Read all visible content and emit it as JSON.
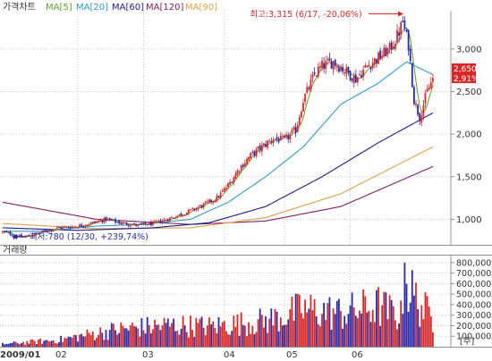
{
  "chart_data": [
    {
      "type": "candlestick",
      "title": "가격차트",
      "legend": [
        {
          "label": "MA[5]",
          "color": "#5aa02c"
        },
        {
          "label": "MA[20]",
          "color": "#3399cc"
        },
        {
          "label": "MA[60]",
          "color": "#1a1a8c"
        },
        {
          "label": "MA[120]",
          "color": "#802060"
        },
        {
          "label": "MA[90]",
          "color": "#d9a24a"
        }
      ],
      "x_ticks": [
        "2009/01",
        "02",
        "03",
        "04",
        "05",
        "06"
      ],
      "y_ticks": [
        "1,000",
        "1,500",
        "2,000",
        "2,500",
        "3,000"
      ],
      "ylim": [
        700,
        3450
      ],
      "price_path": [
        [
          0,
          850
        ],
        [
          6,
          820
        ],
        [
          10,
          790
        ],
        [
          14,
          805
        ],
        [
          22,
          860
        ],
        [
          30,
          900
        ],
        [
          40,
          920
        ],
        [
          48,
          960
        ],
        [
          55,
          1000
        ],
        [
          62,
          960
        ],
        [
          72,
          930
        ],
        [
          80,
          950
        ],
        [
          90,
          1020
        ],
        [
          100,
          1100
        ],
        [
          108,
          1180
        ],
        [
          114,
          1250
        ],
        [
          120,
          1400
        ],
        [
          126,
          1600
        ],
        [
          132,
          1750
        ],
        [
          138,
          1850
        ],
        [
          144,
          1950
        ],
        [
          150,
          1930
        ],
        [
          156,
          2050
        ],
        [
          160,
          2400
        ],
        [
          166,
          2700
        ],
        [
          170,
          2800
        ],
        [
          176,
          2850
        ],
        [
          182,
          2750
        ],
        [
          188,
          2650
        ],
        [
          194,
          2800
        ],
        [
          200,
          2900
        ],
        [
          206,
          3000
        ],
        [
          210,
          3150
        ],
        [
          213,
          3315
        ],
        [
          216,
          3050
        ],
        [
          219,
          2400
        ],
        [
          222,
          2200
        ],
        [
          226,
          2500
        ],
        [
          229,
          2650
        ]
      ],
      "ma_paths": {
        "ma20": [
          [
            0,
            860
          ],
          [
            20,
            860
          ],
          [
            50,
            920
          ],
          [
            75,
            940
          ],
          [
            100,
            1000
          ],
          [
            120,
            1200
          ],
          [
            140,
            1500
          ],
          [
            160,
            1850
          ],
          [
            180,
            2350
          ],
          [
            200,
            2600
          ],
          [
            215,
            2850
          ],
          [
            229,
            2700
          ]
        ],
        "ma60": [
          [
            0,
            900
          ],
          [
            40,
            870
          ],
          [
            80,
            900
          ],
          [
            110,
            960
          ],
          [
            140,
            1150
          ],
          [
            170,
            1500
          ],
          [
            200,
            1900
          ],
          [
            229,
            2250
          ]
        ],
        "ma90": [
          [
            0,
            950
          ],
          [
            50,
            890
          ],
          [
            100,
            900
          ],
          [
            140,
            1020
          ],
          [
            180,
            1300
          ],
          [
            229,
            1850
          ]
        ],
        "ma120": [
          [
            0,
            1200
          ],
          [
            50,
            1000
          ],
          [
            100,
            940
          ],
          [
            140,
            980
          ],
          [
            180,
            1150
          ],
          [
            229,
            1620
          ]
        ]
      },
      "annotations": {
        "high": "최고:3,315 (6/17, -20,06%)",
        "low": "최저:780 (12/30, +239,74%)",
        "current_price": "2,650",
        "current_change": "2,91%"
      },
      "colors": {
        "up": "#d62828",
        "down": "#2a2aa8",
        "grid": "#c8c8c8"
      }
    },
    {
      "type": "bar",
      "title": "거래량",
      "y_ticks": [
        "100,000",
        "200,000",
        "300,000",
        "400,000",
        "500,000",
        "600,000",
        "700,000",
        "800,000"
      ],
      "y_unit": "[주]",
      "ylim": [
        0,
        850000
      ],
      "volume_knots": [
        [
          0,
          0.04
        ],
        [
          30,
          0.1
        ],
        [
          50,
          0.2
        ],
        [
          60,
          0.25
        ],
        [
          70,
          0.28
        ],
        [
          90,
          0.32
        ],
        [
          110,
          0.3
        ],
        [
          140,
          0.38
        ],
        [
          160,
          0.55
        ],
        [
          180,
          0.5
        ],
        [
          200,
          0.6
        ],
        [
          212,
          0.45
        ],
        [
          214,
          0.95
        ],
        [
          220,
          0.7
        ],
        [
          229,
          0.4
        ]
      ],
      "volume_peak": 800000
    }
  ]
}
